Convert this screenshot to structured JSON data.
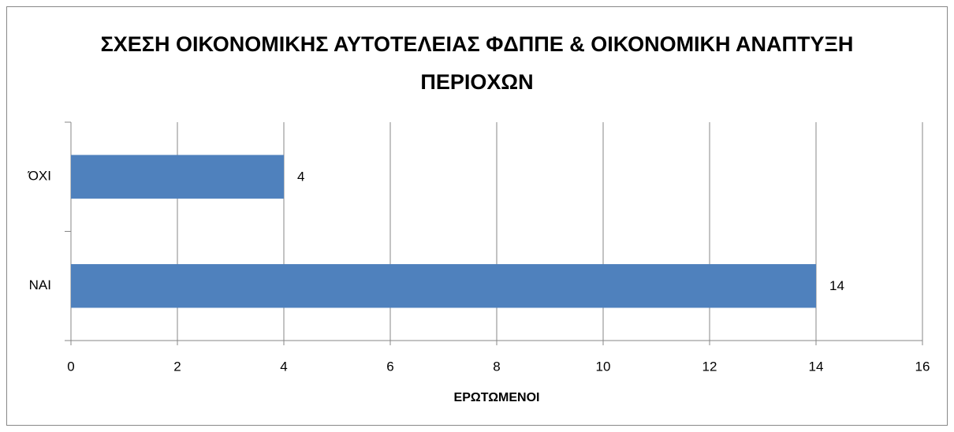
{
  "chart_data": {
    "type": "bar",
    "orientation": "horizontal",
    "title": "ΣΧΕΣΗ ΟΙΚΟΝΟΜΙΚΗΣ ΑΥΤΟΤΕΛΕΙΑΣ ΦΔΠΠΕ & ΟΙΚΟΝΟΜΙΚΗ ΑΝΑΠΤΥΞΗ ΠΕΡΙΟΧΩΝ",
    "x_label": "ΕΡΩΤΩΜΕΝΟΙ",
    "categories": [
      "ΝΑΙ",
      "ΌΧΙ"
    ],
    "values": [
      14,
      4
    ],
    "color": "#4f81bd",
    "xlim": [
      0,
      16
    ],
    "xticks": [
      0,
      2,
      4,
      6,
      8,
      10,
      12,
      14,
      16
    ],
    "grid": true
  }
}
